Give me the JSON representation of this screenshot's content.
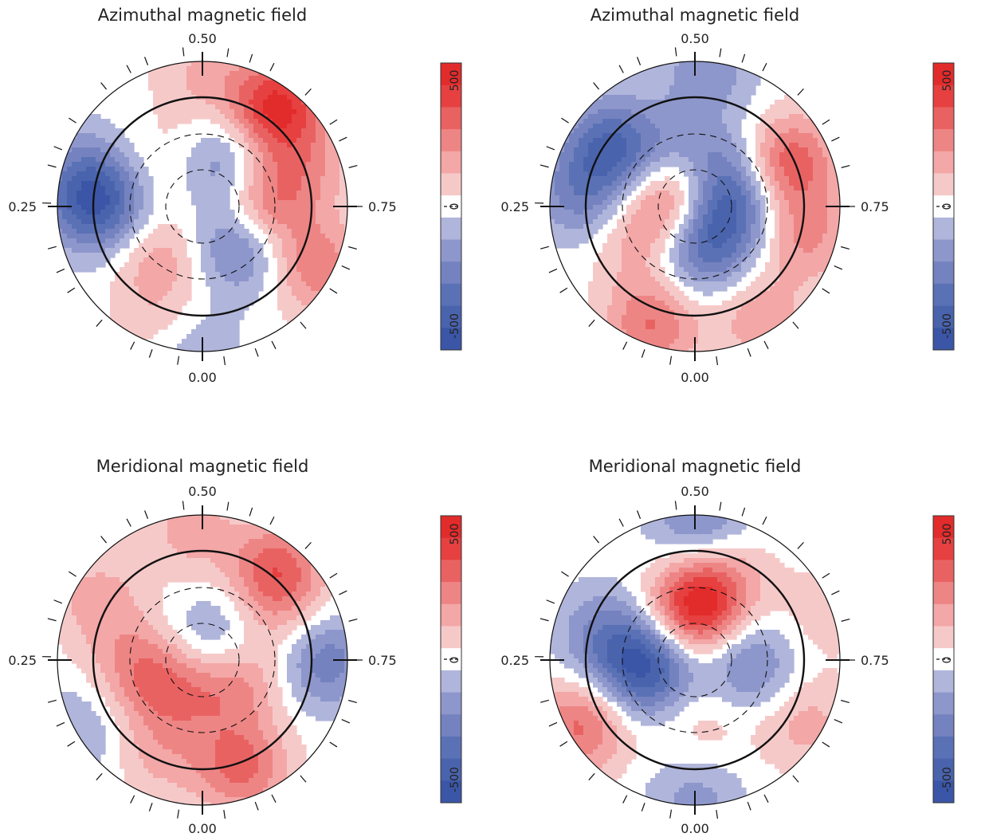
{
  "chart_data": [
    {
      "type": "heatmap",
      "projection": "polar",
      "title": "Azimuthal magnetic field",
      "phase_labels": {
        "top": "0.50",
        "left": "0.25",
        "right": "0.75",
        "bottom": "0.00"
      },
      "colorbar": {
        "ticks": [
          "500",
          "0",
          "-500"
        ],
        "range": [
          -600,
          600
        ],
        "levels": 13
      },
      "blobs": [
        {
          "angle": 90,
          "radius": 1.2,
          "value": 150
        },
        {
          "angle": 48,
          "radius": 1.12,
          "value": 150
        },
        {
          "angle": 55,
          "radius": 1.15,
          "value": 400
        },
        {
          "angle": 20,
          "radius": 1.0,
          "value": 180
        },
        {
          "angle": 0,
          "radius": 0.55,
          "value": 350
        },
        {
          "angle": -28,
          "radius": 1.18,
          "value": 300
        },
        {
          "angle": -130,
          "radius": 0.62,
          "value": 200
        },
        {
          "angle": -110,
          "radius": 1.15,
          "value": 120
        },
        {
          "angle": 180,
          "radius": 0.95,
          "value": -450
        },
        {
          "angle": 165,
          "radius": 1.15,
          "value": -200
        },
        {
          "angle": 70,
          "radius": 0.4,
          "value": -300
        },
        {
          "angle": -45,
          "radius": 0.5,
          "value": -350
        },
        {
          "angle": -95,
          "radius": 1.3,
          "value": -150
        },
        {
          "angle": 120,
          "radius": 0.45,
          "value": 150
        }
      ]
    },
    {
      "type": "heatmap",
      "projection": "polar",
      "title": "Azimuthal magnetic field",
      "phase_labels": {
        "top": "0.50",
        "left": "0.25",
        "right": "0.75",
        "bottom": "0.00"
      },
      "colorbar": {
        "ticks": [
          "500",
          "0",
          "-500"
        ],
        "range": [
          -600,
          600
        ],
        "levels": 13
      },
      "blobs": [
        {
          "angle": 145,
          "radius": 0.95,
          "value": -400
        },
        {
          "angle": 175,
          "radius": 1.05,
          "value": -250
        },
        {
          "angle": 85,
          "radius": 1.25,
          "value": -200
        },
        {
          "angle": 25,
          "radius": 0.95,
          "value": 400
        },
        {
          "angle": -15,
          "radius": 1.05,
          "value": 250
        },
        {
          "angle": -60,
          "radius": 1.18,
          "value": 200
        },
        {
          "angle": -110,
          "radius": 1.15,
          "value": 330
        },
        {
          "angle": 150,
          "radius": 0.2,
          "value": 400
        },
        {
          "angle": 0,
          "radius": 0.3,
          "value": -400
        },
        {
          "angle": -80,
          "radius": 0.4,
          "value": -350
        },
        {
          "angle": 60,
          "radius": 0.45,
          "value": -200
        },
        {
          "angle": -150,
          "radius": 0.6,
          "value": 180
        },
        {
          "angle": 120,
          "radius": 0.55,
          "value": -150
        }
      ]
    },
    {
      "type": "heatmap",
      "projection": "polar",
      "title": "Meridional magnetic field",
      "phase_labels": {
        "top": "0.50",
        "left": "0.25",
        "right": "0.75",
        "bottom": "0.00"
      },
      "colorbar": {
        "ticks": [
          "500",
          "0",
          "-500"
        ],
        "range": [
          -600,
          600
        ],
        "levels": 13
      },
      "blobs": [
        {
          "angle": 50,
          "radius": 1.05,
          "value": 400
        },
        {
          "angle": 95,
          "radius": 1.2,
          "value": 180
        },
        {
          "angle": 150,
          "radius": 1.1,
          "value": 180
        },
        {
          "angle": -70,
          "radius": 1.05,
          "value": 350
        },
        {
          "angle": -115,
          "radius": 0.95,
          "value": 150
        },
        {
          "angle": -150,
          "radius": 0.45,
          "value": 250
        },
        {
          "angle": -30,
          "radius": 0.4,
          "value": 220
        },
        {
          "angle": -90,
          "radius": 0.35,
          "value": 120
        },
        {
          "angle": 180,
          "radius": 0.65,
          "value": 150
        },
        {
          "angle": 0,
          "radius": 1.1,
          "value": -320
        },
        {
          "angle": -150,
          "radius": 1.3,
          "value": -150
        },
        {
          "angle": 60,
          "radius": 0.25,
          "value": -200
        },
        {
          "angle": 20,
          "radius": 0.8,
          "value": 120
        }
      ]
    },
    {
      "type": "heatmap",
      "projection": "polar",
      "title": "Meridional magnetic field",
      "phase_labels": {
        "top": "0.50",
        "left": "0.25",
        "right": "0.75",
        "bottom": "0.00"
      },
      "colorbar": {
        "ticks": [
          "500",
          "0",
          "-500"
        ],
        "range": [
          -600,
          600
        ],
        "levels": 13
      },
      "blobs": [
        {
          "angle": 90,
          "radius": 0.45,
          "value": 520
        },
        {
          "angle": 75,
          "radius": 0.8,
          "value": 220
        },
        {
          "angle": 190,
          "radius": 0.45,
          "value": -520
        },
        {
          "angle": 165,
          "radius": 0.85,
          "value": -250
        },
        {
          "angle": -5,
          "radius": 0.5,
          "value": -280
        },
        {
          "angle": 88,
          "radius": 1.25,
          "value": -280
        },
        {
          "angle": -90,
          "radius": 1.28,
          "value": -180
        },
        {
          "angle": -150,
          "radius": 1.2,
          "value": 350
        },
        {
          "angle": -30,
          "radius": 1.15,
          "value": 180
        },
        {
          "angle": 20,
          "radius": 1.2,
          "value": 100
        },
        {
          "angle": -85,
          "radius": 0.55,
          "value": 120
        }
      ]
    }
  ]
}
